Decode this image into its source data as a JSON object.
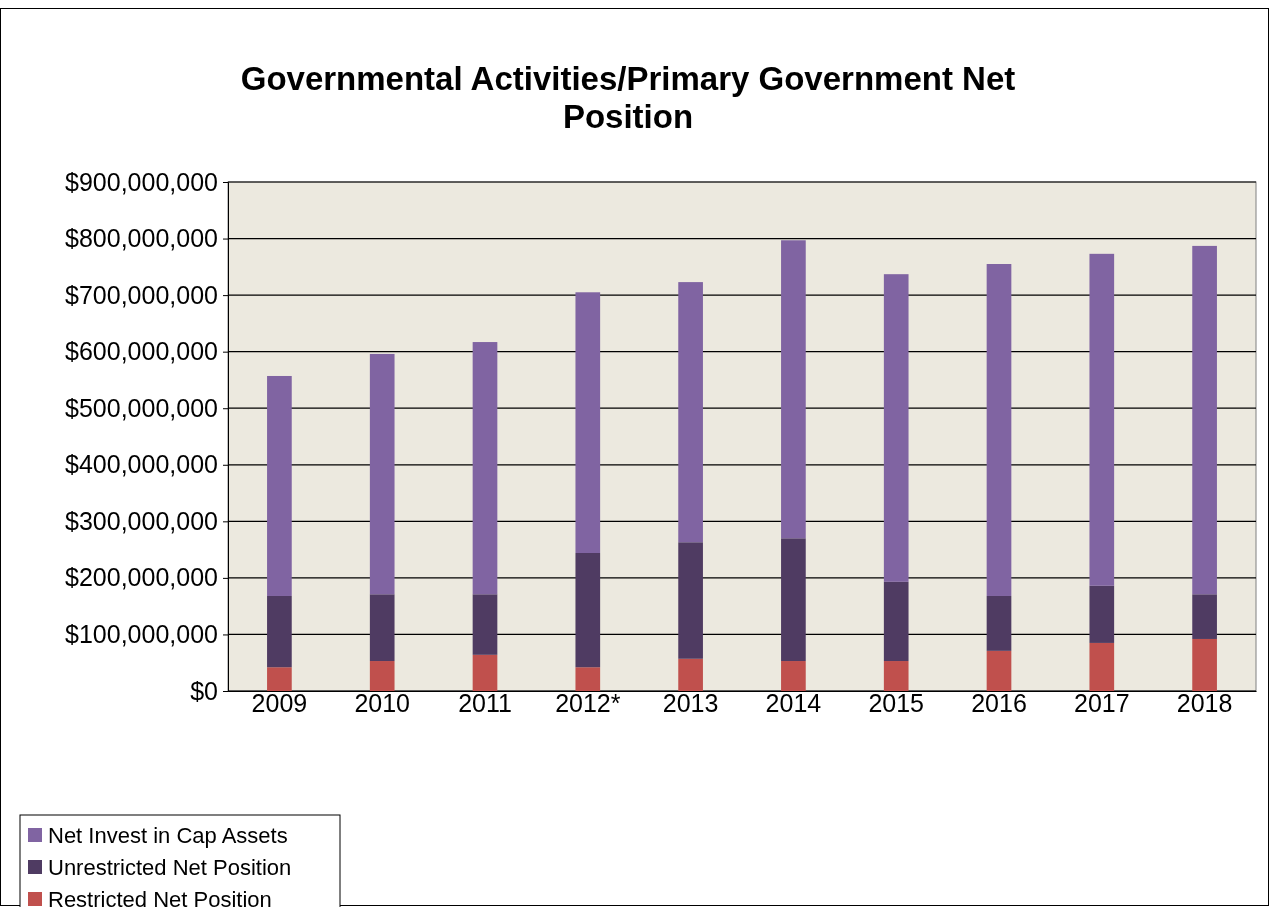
{
  "chart_data": {
    "type": "bar",
    "title": "Governmental Activities/Primary Government Net Position",
    "categories": [
      "2009",
      "2010",
      "2011",
      "2012*",
      "2013",
      "2014",
      "2015",
      "2016",
      "2017",
      "2018"
    ],
    "stacked": true,
    "series": [
      {
        "name": "Restricted Net Position",
        "color": "#c0504d",
        "values": [
          42000000,
          53000000,
          64000000,
          42000000,
          57000000,
          53000000,
          53000000,
          71000000,
          85000000,
          92000000
        ]
      },
      {
        "name": "Unrestricted Net Position",
        "color": "#4f3b62",
        "values": [
          126000000,
          118000000,
          107000000,
          202000000,
          206000000,
          217000000,
          140000000,
          97000000,
          101000000,
          79000000
        ]
      },
      {
        "name": "Net Invest in Cap Assets",
        "color": "#8064a2",
        "values": [
          389000000,
          425000000,
          446000000,
          461000000,
          460000000,
          527000000,
          544000000,
          587000000,
          587000000,
          616000000
        ]
      }
    ],
    "ylim": [
      0,
      900000000
    ],
    "yticks": [
      {
        "value": 0,
        "label": "$0"
      },
      {
        "value": 100000000,
        "label": "$100,000,000"
      },
      {
        "value": 200000000,
        "label": "$200,000,000"
      },
      {
        "value": 300000000,
        "label": "$300,000,000"
      },
      {
        "value": 400000000,
        "label": "$400,000,000"
      },
      {
        "value": 500000000,
        "label": "$500,000,000"
      },
      {
        "value": 600000000,
        "label": "$600,000,000"
      },
      {
        "value": 700000000,
        "label": "$700,000,000"
      },
      {
        "value": 800000000,
        "label": "$800,000,000"
      },
      {
        "value": 900000000,
        "label": "$900,000,000"
      }
    ],
    "grid": "y",
    "legend": "bottom left"
  }
}
